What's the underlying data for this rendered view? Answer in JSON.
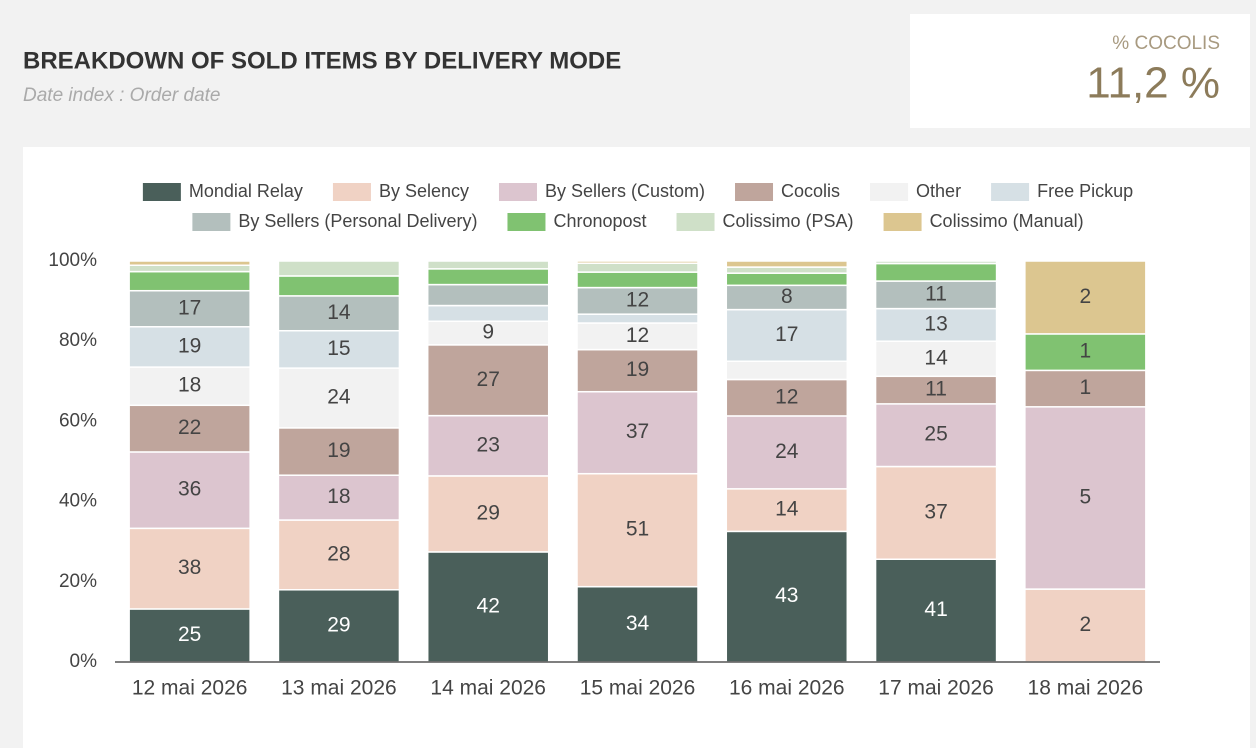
{
  "kpi": {
    "label": "% COCOLIS",
    "value": "11,2 %"
  },
  "chart_data": {
    "type": "bar",
    "stacking": "percent",
    "title": "BREAKDOWN OF SOLD ITEMS BY DELIVERY MODE",
    "subtitle": "Date index : Order date",
    "categories": [
      "12 mai 2026",
      "13 mai 2026",
      "14 mai 2026",
      "15 mai 2026",
      "16 mai 2026",
      "17 mai 2026",
      "18 mai 2026"
    ],
    "series": [
      {
        "name": "Mondial Relay",
        "color": "#4a5f5a",
        "values": [
          25,
          29,
          42,
          34,
          43,
          41,
          0
        ]
      },
      {
        "name": "By Selency",
        "color": "#f0d2c4",
        "values": [
          38,
          28,
          29,
          51,
          14,
          37,
          2
        ]
      },
      {
        "name": "By Sellers (Custom)",
        "color": "#dcc5cf",
        "values": [
          36,
          18,
          23,
          37,
          24,
          25,
          5
        ]
      },
      {
        "name": "Cocolis",
        "color": "#bfa59c",
        "values": [
          22,
          19,
          27,
          19,
          12,
          11,
          1
        ]
      },
      {
        "name": "Other",
        "color": "#f2f2f2",
        "values": [
          18,
          24,
          9,
          12,
          6,
          14,
          0
        ]
      },
      {
        "name": "Free Pickup",
        "color": "#d6e0e5",
        "values": [
          19,
          15,
          6,
          4,
          17,
          13,
          0
        ]
      },
      {
        "name": "By Sellers (Personal Delivery)",
        "color": "#b3bfbd",
        "values": [
          17,
          14,
          8,
          12,
          8,
          11,
          0
        ]
      },
      {
        "name": "Chronopost",
        "color": "#80c271",
        "values": [
          9,
          8,
          6,
          7,
          4,
          7,
          1
        ]
      },
      {
        "name": "Colissimo (PSA)",
        "color": "#cfe0c8",
        "values": [
          3,
          6,
          3,
          4,
          2,
          1,
          0
        ]
      },
      {
        "name": "Colissimo (Manual)",
        "color": "#dcc690",
        "values": [
          2,
          0,
          0,
          1,
          2,
          0,
          2
        ]
      }
    ],
    "ylim": [
      0,
      100
    ],
    "yticks": [
      {
        "value": 0,
        "label": "0%"
      },
      {
        "value": 20,
        "label": "20%"
      },
      {
        "value": 40,
        "label": "40%"
      },
      {
        "value": 60,
        "label": "60%"
      },
      {
        "value": 80,
        "label": "80%"
      },
      {
        "value": 100,
        "label": "100%"
      }
    ]
  }
}
